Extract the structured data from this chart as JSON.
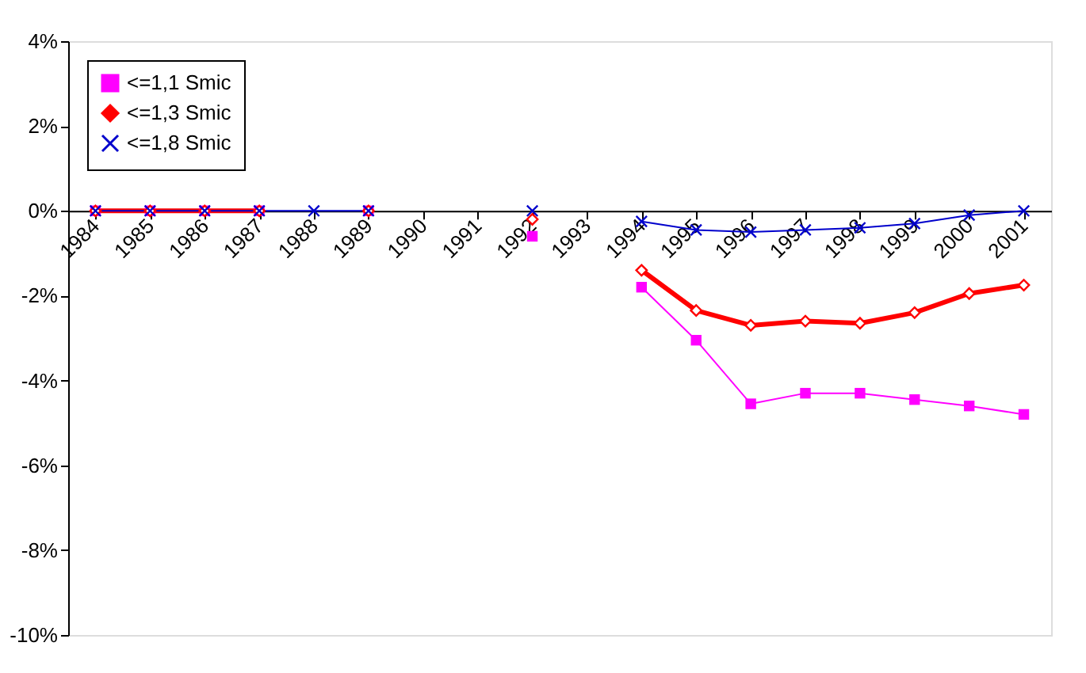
{
  "chart_data": {
    "type": "line",
    "categories": [
      "1984",
      "1985",
      "1986",
      "1987",
      "1988",
      "1989",
      "1990",
      "1991",
      "1992",
      "1993",
      "1994",
      "1995",
      "1996",
      "1997",
      "1998",
      "1999",
      "2000",
      "2001"
    ],
    "series": [
      {
        "name": "<=1,1 Smic",
        "color": "#ff00ff",
        "marker": "square",
        "values": [
          0,
          0,
          0,
          0,
          null,
          0,
          null,
          null,
          -0.6,
          null,
          -1.8,
          -3.05,
          -4.55,
          -4.3,
          -4.3,
          -4.45,
          -4.6,
          -4.8
        ]
      },
      {
        "name": "<=1,3 Smic",
        "color": "#ff0000",
        "marker": "diamond",
        "values": [
          0,
          0,
          0,
          0,
          null,
          0,
          null,
          null,
          -0.2,
          null,
          -1.4,
          -2.35,
          -2.7,
          -2.6,
          -2.65,
          -2.4,
          -1.95,
          -1.75
        ]
      },
      {
        "name": "<=1,8 Smic",
        "color": "#0000cc",
        "marker": "cross",
        "values": [
          0,
          0,
          0,
          0,
          0,
          0,
          null,
          null,
          0,
          null,
          -0.25,
          -0.45,
          -0.5,
          -0.45,
          -0.4,
          -0.3,
          -0.1,
          0
        ]
      }
    ],
    "ylim": [
      -10,
      4
    ],
    "yticks": [
      {
        "value": -10,
        "label": "-10%"
      },
      {
        "value": -8,
        "label": "-8%"
      },
      {
        "value": -6,
        "label": "-6%"
      },
      {
        "value": -4,
        "label": "-4%"
      },
      {
        "value": -2,
        "label": "-2%"
      },
      {
        "value": 0,
        "label": "0%"
      },
      {
        "value": 2,
        "label": "2%"
      },
      {
        "value": 4,
        "label": "4%"
      }
    ],
    "legend": "top left",
    "grid": false
  }
}
